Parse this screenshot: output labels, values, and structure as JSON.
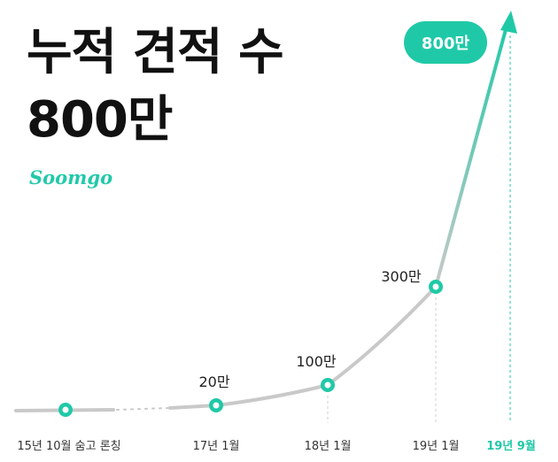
{
  "title": {
    "line1": "누적 견적 수",
    "line2": "800만"
  },
  "logo": "Soomgo",
  "colors": {
    "accent": "#1fc9a7",
    "line": "#c9c9c9",
    "text": "#222222"
  },
  "chart_data": {
    "type": "line",
    "x": [
      "15년 10월 숨고 론칭",
      "17년 1월",
      "18년 1월",
      "19년 1월",
      "19년 9월"
    ],
    "series": [
      {
        "values": [
          0,
          20,
          100,
          300,
          800
        ]
      }
    ],
    "data_labels": [
      "",
      "20만",
      "100만",
      "300만",
      "800만"
    ],
    "unit": "만"
  }
}
